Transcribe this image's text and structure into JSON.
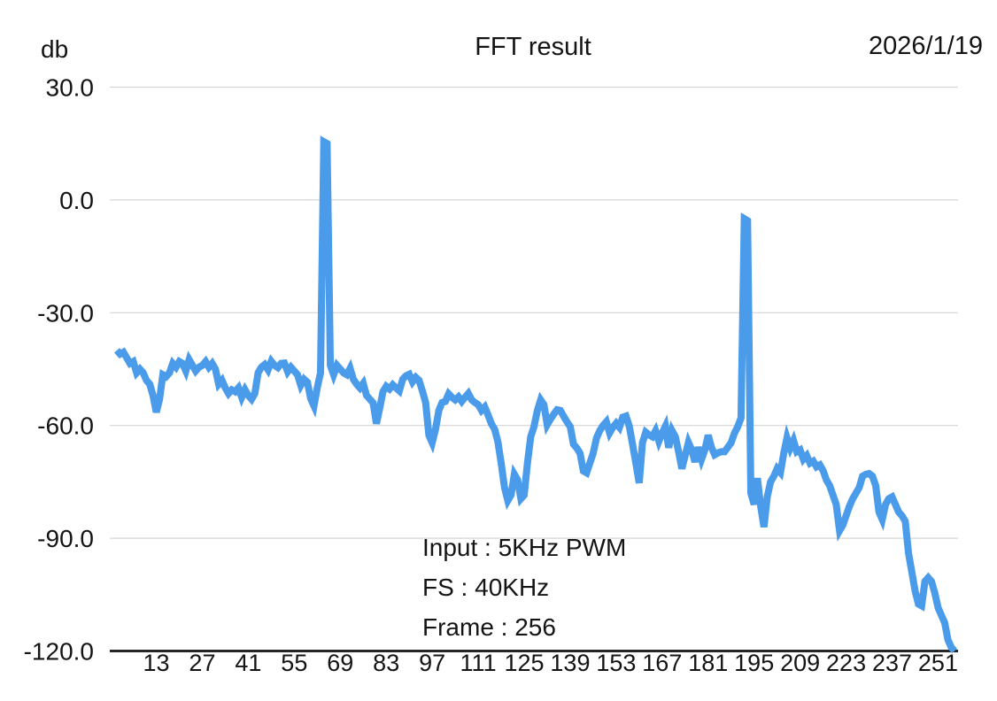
{
  "header": {
    "y_axis_unit": "db",
    "title": "FFT result",
    "date": "2026/1/19"
  },
  "annotations": {
    "input": "Input : 5KHz PWM",
    "fs": "FS : 40KHz",
    "frame": "Frame : 256"
  },
  "colors": {
    "line": "#4B9BEB",
    "grid": "#D6D6D6",
    "axis": "#262626",
    "text": "#141414",
    "background": "#FFFFFF"
  },
  "chart_data": {
    "type": "line",
    "title": "FFT result",
    "ylabel": "db",
    "xlabel": "",
    "date_label": "2026/1/19",
    "annotations": [
      "Input : 5KHz PWM",
      "FS : 40KHz",
      "Frame : 256"
    ],
    "legend": "none",
    "grid": "horizontal",
    "x_start": 1,
    "x_end": 256,
    "x_tick_labels": [
      13,
      27,
      41,
      55,
      69,
      83,
      97,
      111,
      125,
      139,
      153,
      167,
      181,
      195,
      209,
      223,
      237,
      251
    ],
    "y_tick_labels": [
      "30.0",
      "0.0",
      "-30.0",
      "-60.0",
      "-90.0",
      "-120.0"
    ],
    "ylim": [
      -120,
      30
    ],
    "line_color": "#4B9BEB",
    "values": [
      -40,
      -41,
      -40.5,
      -42,
      -43.5,
      -43,
      -46,
      -45,
      -46,
      -48,
      -49,
      -52,
      -56.5,
      -53,
      -46.5,
      -47,
      -46,
      -43.5,
      -44.5,
      -43,
      -43.5,
      -45.5,
      -42.5,
      -44,
      -45.5,
      -44.5,
      -44,
      -43,
      -44.5,
      -43.5,
      -45,
      -49,
      -48,
      -50,
      -51.5,
      -50.5,
      -51,
      -50,
      -52.5,
      -50.5,
      -52,
      -53,
      -51.5,
      -46,
      -44.5,
      -43.8,
      -45.2,
      -42.9,
      -44,
      -44.6,
      -43.5,
      -43.4,
      -45.7,
      -44.5,
      -45.5,
      -46.5,
      -49.3,
      -47.7,
      -48.5,
      -52.9,
      -54.8,
      -50,
      -46,
      15.5,
      15,
      -44,
      -46.5,
      -44,
      -45,
      -46,
      -46.5,
      -44.8,
      -47.7,
      -49,
      -50,
      -48.8,
      -52,
      -53,
      -54,
      -59.5,
      -55.5,
      -51,
      -49.6,
      -50.3,
      -49.2,
      -50,
      -50.8,
      -47.7,
      -46.8,
      -46.4,
      -48.4,
      -47.2,
      -48,
      -50.8,
      -53.9,
      -62.6,
      -64.6,
      -61,
      -56,
      -53.9,
      -53.6,
      -51.6,
      -52.5,
      -53.2,
      -52.4,
      -53.6,
      -52.5,
      -51.5,
      -53.2,
      -53.9,
      -54.5,
      -56,
      -55.1,
      -57.2,
      -59.5,
      -61,
      -64.3,
      -70,
      -76.5,
      -80,
      -78.5,
      -73,
      -74.5,
      -79.5,
      -78.5,
      -70,
      -63,
      -60.3,
      -56,
      -53.2,
      -54.5,
      -59.8,
      -58.3,
      -57,
      -55.8,
      -56,
      -57.5,
      -59,
      -60.3,
      -65,
      -66,
      -67.4,
      -72.1,
      -72.6,
      -70,
      -67.4,
      -63.4,
      -61.4,
      -60,
      -59,
      -62,
      -60.5,
      -59.4,
      -60.5,
      -57.8,
      -57.5,
      -60.2,
      -65,
      -70,
      -75.3,
      -64.6,
      -61.8,
      -62.5,
      -63,
      -61.4,
      -64.2,
      -62,
      -60.2,
      -65.9,
      -61.4,
      -63,
      -67,
      -71.5,
      -68,
      -64.5,
      -66.5,
      -69.7,
      -65.8,
      -69,
      -66.5,
      -62.6,
      -65.8,
      -67.8,
      -67.3,
      -67,
      -67,
      -65.8,
      -64.6,
      -62.1,
      -60.3,
      -58,
      -5,
      -5.5,
      -78,
      -81,
      -74,
      -81.5,
      -87,
      -79,
      -75,
      -73.5,
      -71.5,
      -72.5,
      -67.5,
      -63.3,
      -66,
      -64,
      -67,
      -66.5,
      -69,
      -68,
      -70,
      -69.5,
      -71,
      -70.5,
      -72,
      -74.5,
      -76,
      -78.5,
      -81,
      -88,
      -86.5,
      -84,
      -81.5,
      -79.5,
      -78,
      -76.5,
      -73.5,
      -73,
      -72.8,
      -73.5,
      -76,
      -83,
      -85,
      -81,
      -79.5,
      -79,
      -81,
      -83,
      -84,
      -85.5,
      -94,
      -99,
      -104,
      -107.5,
      -108,
      -101.5,
      -100.5,
      -101.5,
      -104.5,
      -108.5,
      -110.5,
      -112.5,
      -117,
      -119,
      -120
    ]
  }
}
